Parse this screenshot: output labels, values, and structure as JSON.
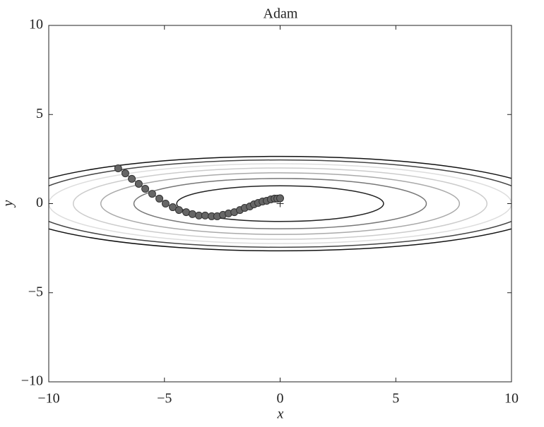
{
  "chart_data": {
    "type": "line",
    "title": "Adam",
    "xlabel": "x",
    "ylabel": "y",
    "xlim": [
      -10,
      10
    ],
    "ylim": [
      -10,
      10
    ],
    "xticks": [
      {
        "value": -10,
        "label": "−10"
      },
      {
        "value": -5,
        "label": "−5"
      },
      0,
      5,
      10
    ],
    "yticks": [
      {
        "value": -10,
        "label": "−10"
      },
      {
        "value": -5,
        "label": "−5"
      },
      0,
      5,
      10
    ],
    "minimum": {
      "x": 0,
      "y": 0
    },
    "contours": [
      {
        "rx": 4.47,
        "ry": 1.0,
        "color": "#222222"
      },
      {
        "rx": 6.32,
        "ry": 1.41,
        "color": "#777777"
      },
      {
        "rx": 7.75,
        "ry": 1.73,
        "color": "#aaaaaa"
      },
      {
        "rx": 8.94,
        "ry": 2.0,
        "color": "#cccccc"
      },
      {
        "rx": 10.0,
        "ry": 2.24,
        "color": "#dddddd"
      },
      {
        "rx": 10.95,
        "ry": 2.45,
        "color": "#444444"
      },
      {
        "rx": 11.83,
        "ry": 2.65,
        "color": "#111111"
      }
    ],
    "series": [
      {
        "color": "#666666",
        "x": [
          -7.0,
          -6.69,
          -6.41,
          -6.11,
          -5.83,
          -5.53,
          -5.22,
          -4.95,
          -4.64,
          -4.37,
          -4.06,
          -3.79,
          -3.51,
          -3.24,
          -2.96,
          -2.72,
          -2.47,
          -2.23,
          -1.98,
          -1.74,
          -1.53,
          -1.31,
          -1.13,
          -0.95,
          -0.76,
          -0.58,
          -0.4,
          -0.24,
          -0.12,
          0.0
        ],
        "values": [
          1.98,
          1.7,
          1.39,
          1.11,
          0.83,
          0.55,
          0.28,
          0.0,
          -0.2,
          -0.36,
          -0.48,
          -0.59,
          -0.67,
          -0.67,
          -0.71,
          -0.71,
          -0.63,
          -0.55,
          -0.48,
          -0.36,
          -0.24,
          -0.16,
          -0.04,
          0.04,
          0.12,
          0.16,
          0.24,
          0.28,
          0.28,
          0.3
        ]
      }
    ]
  }
}
